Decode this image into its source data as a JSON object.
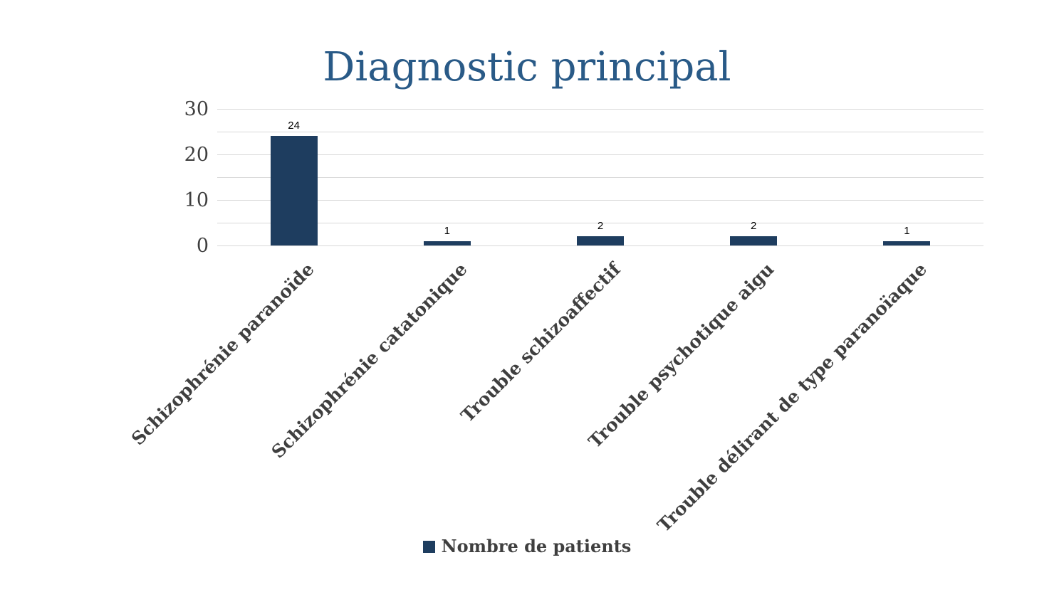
{
  "chart_data": {
    "type": "bar",
    "title": "Diagnostic principal",
    "categories": [
      "Schizophrénie paranoïde",
      "Schizophrénie catatonique",
      "Trouble schizoaffectif",
      "Trouble psychotique aigu",
      "Trouble délirant de type paranoïaque"
    ],
    "series": [
      {
        "name": "Nombre de patients",
        "values": [
          24,
          1,
          2,
          2,
          1
        ],
        "data_labels": [
          "24",
          "1",
          "2",
          "2",
          "1"
        ]
      }
    ],
    "xlabel": "",
    "ylabel": "",
    "ylim": [
      0,
      30
    ],
    "y_tick_values": [
      0,
      10,
      20,
      30
    ],
    "y_tick_labels": [
      "0",
      "10",
      "20",
      "30"
    ],
    "gridline_step": 5,
    "grid": true,
    "legend_position": "bottom",
    "colors": {
      "bar": "#1e3d5f",
      "title": "#295a87",
      "gridline": "#d9d9d9",
      "axis_text": "#3f3f3f",
      "data_label": "#000000",
      "background": "#ffffff"
    }
  },
  "legend": {
    "label": "Nombre de patients"
  }
}
